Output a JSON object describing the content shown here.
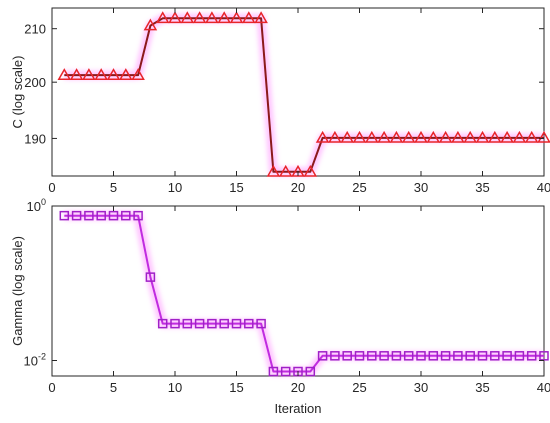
{
  "chart_data": [
    {
      "type": "line",
      "ylabel": "C (log scale)",
      "xlabel": "",
      "yscale": "log",
      "xlim": [
        0,
        40
      ],
      "ylim": [
        183.6,
        214
      ],
      "xticks": [
        "0",
        "5",
        "10",
        "15",
        "20",
        "25",
        "30",
        "35",
        "40"
      ],
      "yticks": [
        {
          "value": 190,
          "label": "190"
        },
        {
          "value": 200,
          "label": "200"
        },
        {
          "value": 210,
          "label": "210"
        }
      ],
      "grid": false,
      "marker": "triangle",
      "line_color": "#8b1a1a",
      "marker_color": "#e8242a",
      "glow_color": "#ff80ff",
      "x": [
        1,
        2,
        3,
        4,
        5,
        6,
        7,
        8,
        9,
        10,
        11,
        12,
        13,
        14,
        15,
        16,
        17,
        18,
        19,
        20,
        21,
        22,
        23,
        24,
        25,
        26,
        27,
        28,
        29,
        30,
        31,
        32,
        33,
        34,
        35,
        36,
        37,
        38,
        39,
        40
      ],
      "series": [
        {
          "values": [
            201.3,
            201.3,
            201.3,
            201.3,
            201.3,
            201.3,
            201.3,
            210.6,
            212.0,
            212.0,
            212.0,
            212.0,
            212.0,
            212.0,
            212.0,
            212.0,
            212.0,
            184.3,
            184.3,
            184.3,
            184.3,
            190.1,
            190.1,
            190.1,
            190.1,
            190.1,
            190.1,
            190.1,
            190.1,
            190.1,
            190.1,
            190.1,
            190.1,
            190.1,
            190.1,
            190.1,
            190.1,
            190.1,
            190.1,
            190.1
          ]
        }
      ]
    },
    {
      "type": "line",
      "ylabel": "Gamma (log scale)",
      "xlabel": "Iteration",
      "yscale": "log",
      "xlim": [
        0,
        40
      ],
      "ylim": [
        0.0063,
        1.0
      ],
      "xticks": [
        "0",
        "5",
        "10",
        "15",
        "20",
        "25",
        "30",
        "35",
        "40"
      ],
      "yticks": [
        {
          "value": 1.0,
          "base": "10",
          "exp": "0"
        },
        {
          "value": 0.01,
          "base": "10",
          "exp": "-2"
        }
      ],
      "grid": false,
      "marker": "square",
      "line_color": "#c02ce0",
      "marker_color": "#a020c8",
      "glow_color": "#ff80ff",
      "x": [
        1,
        2,
        3,
        4,
        5,
        6,
        7,
        8,
        9,
        10,
        11,
        12,
        13,
        14,
        15,
        16,
        17,
        18,
        19,
        20,
        21,
        22,
        23,
        24,
        25,
        26,
        27,
        28,
        29,
        30,
        31,
        32,
        33,
        34,
        35,
        36,
        37,
        38,
        39,
        40
      ],
      "series": [
        {
          "values": [
            0.75,
            0.75,
            0.75,
            0.75,
            0.75,
            0.75,
            0.75,
            0.12,
            0.03,
            0.03,
            0.03,
            0.03,
            0.03,
            0.03,
            0.03,
            0.03,
            0.03,
            0.0072,
            0.0072,
            0.0072,
            0.0072,
            0.0115,
            0.0115,
            0.0115,
            0.0115,
            0.0115,
            0.0115,
            0.0115,
            0.0115,
            0.0115,
            0.0115,
            0.0115,
            0.0115,
            0.0115,
            0.0115,
            0.0115,
            0.0115,
            0.0115,
            0.0115,
            0.0115
          ]
        }
      ]
    }
  ]
}
